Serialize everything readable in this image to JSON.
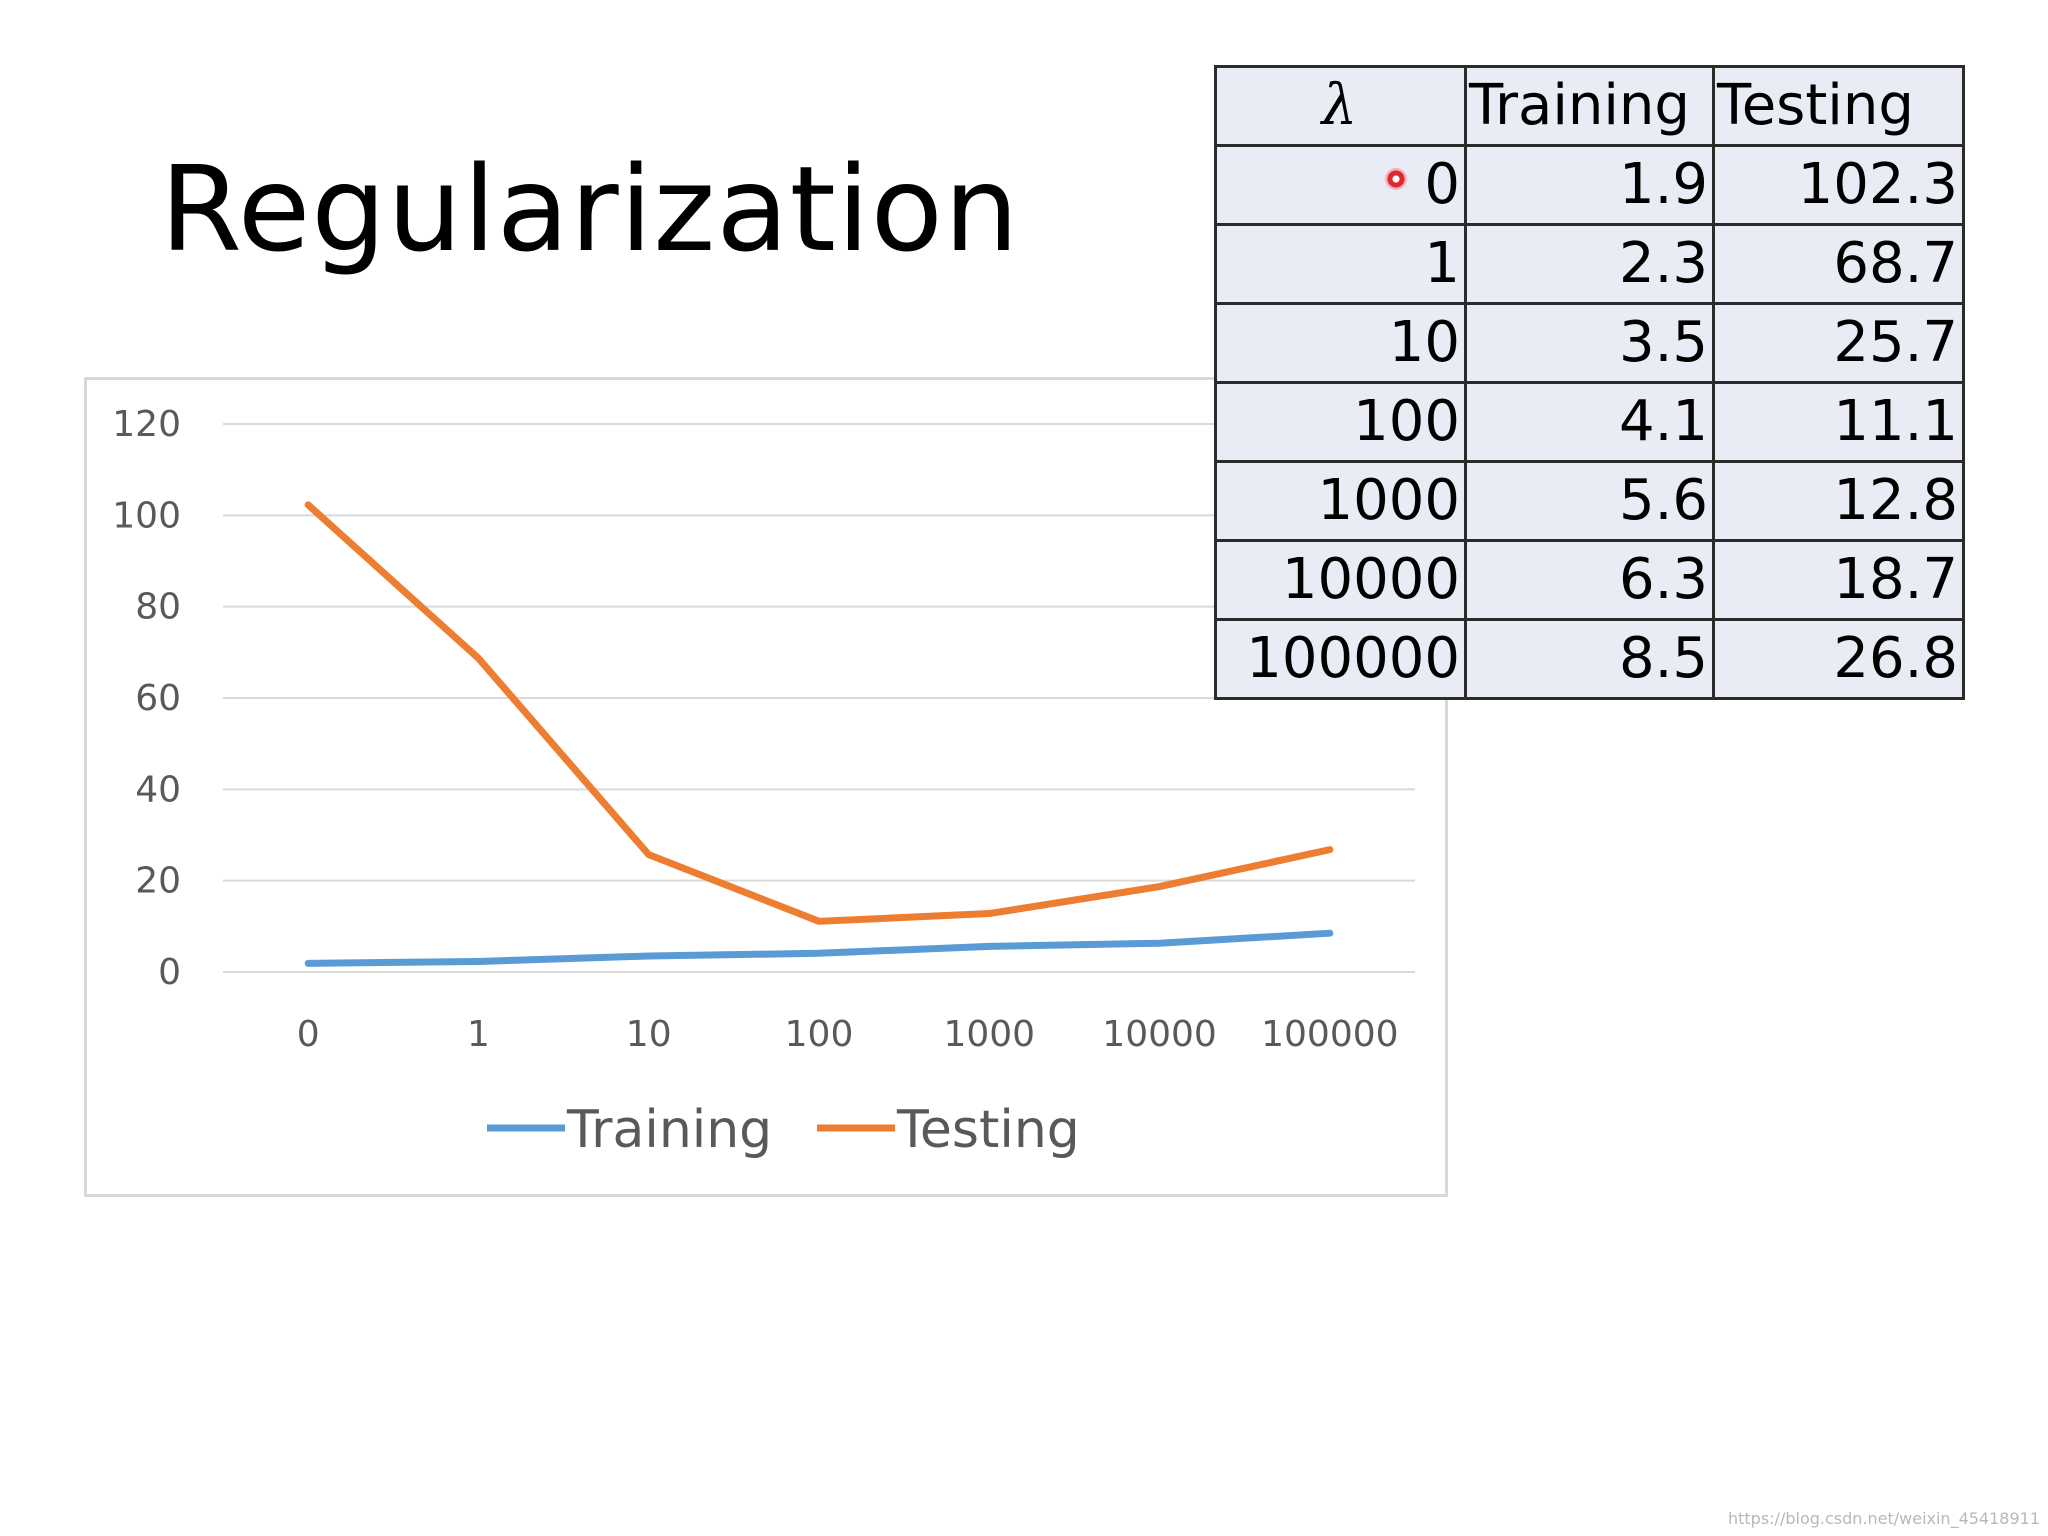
{
  "slide": {
    "title": "Regularization"
  },
  "table": {
    "headers": [
      "λ",
      "Training",
      "Testing"
    ],
    "rows": [
      [
        "0",
        "1.9",
        "102.3"
      ],
      [
        "1",
        "2.3",
        "68.7"
      ],
      [
        "10",
        "3.5",
        "25.7"
      ],
      [
        "100",
        "4.1",
        "11.1"
      ],
      [
        "1000",
        "5.6",
        "12.8"
      ],
      [
        "10000",
        "6.3",
        "18.7"
      ],
      [
        "100000",
        "8.5",
        "26.8"
      ]
    ]
  },
  "chart_data": {
    "type": "line",
    "categories": [
      "0",
      "1",
      "10",
      "100",
      "1000",
      "10000",
      "100000"
    ],
    "series": [
      {
        "name": "Training",
        "color": "#5b9bd5",
        "values": [
          1.9,
          2.3,
          3.5,
          4.1,
          5.6,
          6.3,
          8.5
        ]
      },
      {
        "name": "Testing",
        "color": "#ed7d31",
        "values": [
          102.3,
          68.7,
          25.7,
          11.1,
          12.8,
          18.7,
          26.8
        ]
      }
    ],
    "title": "",
    "xlabel": "",
    "ylabel": "",
    "ylim": [
      0,
      120
    ],
    "yticks": [
      0,
      20,
      40,
      60,
      80,
      100,
      120
    ],
    "grid": true,
    "legend": "bottom"
  },
  "watermark": "https://blog.csdn.net/weixin_45418911"
}
